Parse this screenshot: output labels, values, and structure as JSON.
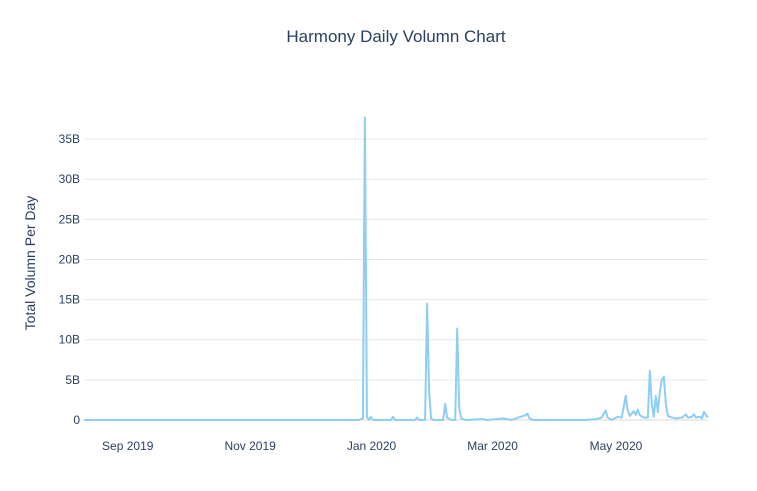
{
  "chart_data": {
    "type": "line",
    "title": "Harmony Daily Volumn Chart",
    "xlabel": "",
    "ylabel": "Total Volumn Per Day",
    "x_range": [
      "2019-08-24",
      "2020-06-30"
    ],
    "ylim": [
      -1000000000,
      39500000000
    ],
    "y_ticks": [
      0,
      5000000000,
      10000000000,
      15000000000,
      20000000000,
      25000000000,
      30000000000,
      35000000000
    ],
    "y_tick_labels": [
      "0",
      "5B",
      "10B",
      "15B",
      "20B",
      "25B",
      "30B",
      "35B"
    ],
    "x_ticks": [
      "2019-09-01",
      "2019-11-01",
      "2020-01-01",
      "2020-03-01",
      "2020-05-01"
    ],
    "x_tick_labels": [
      "Sep 2019",
      "Nov 2019",
      "Jan 2020",
      "Mar 2020",
      "May 2020"
    ],
    "grid": true,
    "legend": "none",
    "line_color": "#90cdf4",
    "series": [
      {
        "points": [
          [
            "2019-08-24",
            0
          ],
          [
            "2020-01-08",
            0
          ],
          [
            "2020-01-10",
            200000000
          ],
          [
            "2020-01-11",
            37700000000
          ],
          [
            "2020-01-12",
            400000000
          ],
          [
            "2020-01-13",
            0
          ],
          [
            "2020-01-14",
            400000000
          ],
          [
            "2020-01-15",
            0
          ],
          [
            "2020-01-24",
            0
          ],
          [
            "2020-01-25",
            400000000
          ],
          [
            "2020-01-26",
            0
          ],
          [
            "2020-02-05",
            0
          ],
          [
            "2020-02-06",
            300000000
          ],
          [
            "2020-02-07",
            0
          ],
          [
            "2020-02-10",
            0
          ],
          [
            "2020-02-11",
            14500000000
          ],
          [
            "2020-02-12",
            3500000000
          ],
          [
            "2020-02-13",
            200000000
          ],
          [
            "2020-02-14",
            0
          ],
          [
            "2020-02-19",
            0
          ],
          [
            "2020-02-20",
            2000000000
          ],
          [
            "2020-02-21",
            300000000
          ],
          [
            "2020-02-23",
            0
          ],
          [
            "2020-02-25",
            0
          ],
          [
            "2020-02-26",
            11400000000
          ],
          [
            "2020-02-27",
            1500000000
          ],
          [
            "2020-02-28",
            200000000
          ],
          [
            "2020-03-01",
            0
          ],
          [
            "2020-03-10",
            100000000
          ],
          [
            "2020-03-12",
            0
          ],
          [
            "2020-03-20",
            200000000
          ],
          [
            "2020-03-24",
            0
          ],
          [
            "2020-03-31",
            600000000
          ],
          [
            "2020-04-01",
            800000000
          ],
          [
            "2020-04-02",
            200000000
          ],
          [
            "2020-04-04",
            0
          ],
          [
            "2020-04-30",
            0
          ],
          [
            "2020-05-05",
            100000000
          ],
          [
            "2020-05-08",
            300000000
          ],
          [
            "2020-05-10",
            1200000000
          ],
          [
            "2020-05-11",
            300000000
          ],
          [
            "2020-05-13",
            0
          ],
          [
            "2020-05-16",
            400000000
          ],
          [
            "2020-05-18",
            300000000
          ],
          [
            "2020-05-20",
            3000000000
          ],
          [
            "2020-05-21",
            1200000000
          ],
          [
            "2020-05-22",
            500000000
          ],
          [
            "2020-05-24",
            1100000000
          ],
          [
            "2020-05-25",
            600000000
          ],
          [
            "2020-05-26",
            1300000000
          ],
          [
            "2020-05-27",
            600000000
          ],
          [
            "2020-05-29",
            300000000
          ],
          [
            "2020-05-31",
            300000000
          ],
          [
            "2020-06-01",
            6100000000
          ],
          [
            "2020-06-02",
            2000000000
          ],
          [
            "2020-06-03",
            400000000
          ],
          [
            "2020-06-04",
            3000000000
          ],
          [
            "2020-06-05",
            1000000000
          ],
          [
            "2020-06-06",
            3500000000
          ],
          [
            "2020-06-07",
            5000000000
          ],
          [
            "2020-06-08",
            5400000000
          ],
          [
            "2020-06-09",
            2000000000
          ],
          [
            "2020-06-10",
            500000000
          ],
          [
            "2020-06-12",
            300000000
          ],
          [
            "2020-06-14",
            200000000
          ],
          [
            "2020-06-17",
            300000000
          ],
          [
            "2020-06-19",
            700000000
          ],
          [
            "2020-06-20",
            300000000
          ],
          [
            "2020-06-22",
            400000000
          ],
          [
            "2020-06-23",
            700000000
          ],
          [
            "2020-06-24",
            300000000
          ],
          [
            "2020-06-26",
            400000000
          ],
          [
            "2020-06-27",
            200000000
          ],
          [
            "2020-06-28",
            1000000000
          ],
          [
            "2020-06-29",
            600000000
          ],
          [
            "2020-06-30",
            300000000
          ]
        ]
      }
    ]
  }
}
